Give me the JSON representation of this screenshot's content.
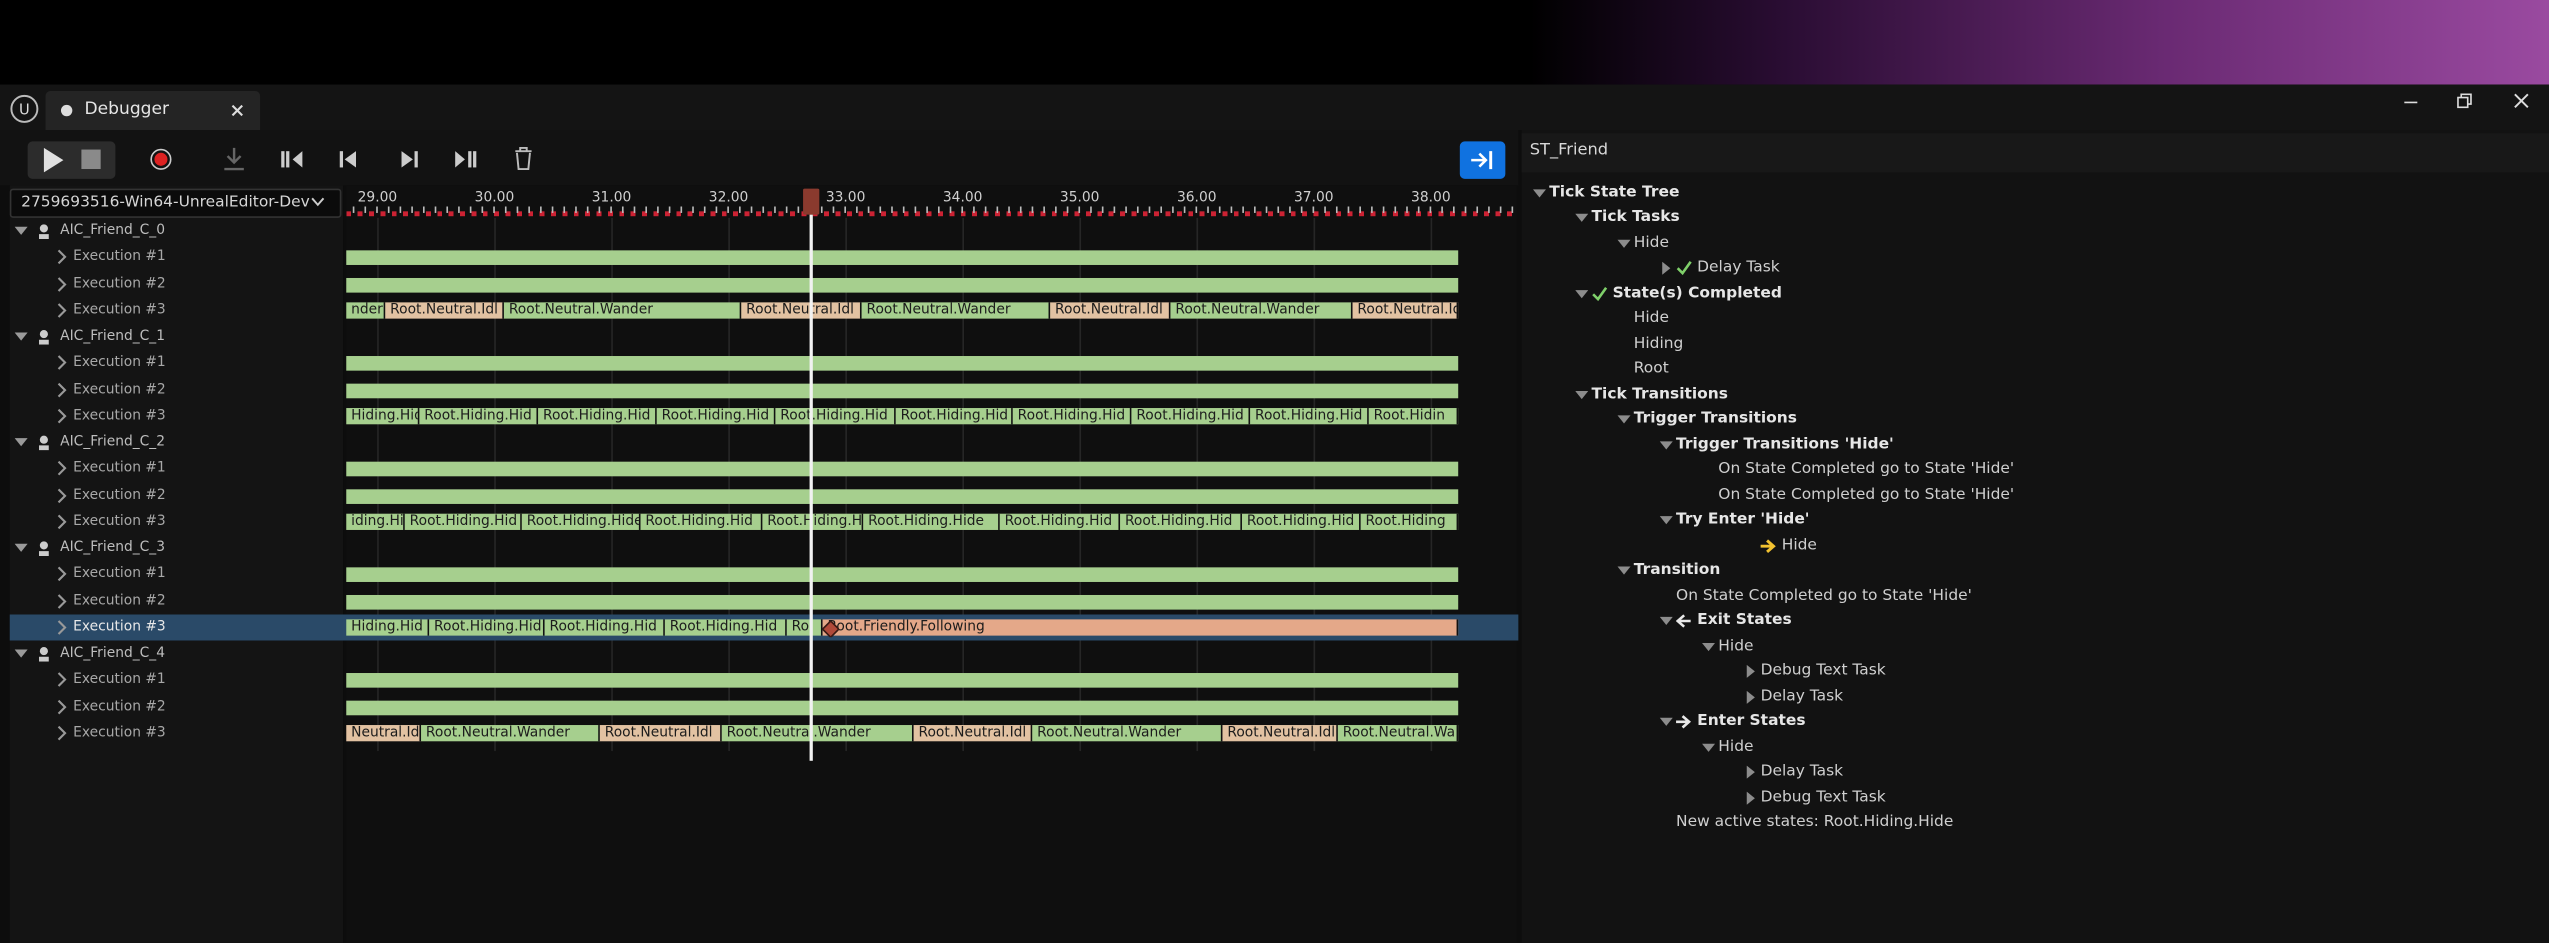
{
  "tab": {
    "title": "Debugger"
  },
  "session": "2759693516-Win64-UnrealEditor-Dev",
  "ruler": [
    "29.00",
    "30.00",
    "31.00",
    "32.00",
    "33.00",
    "34.00",
    "35.00",
    "36.00",
    "37.00",
    "38.00"
  ],
  "tracks": [
    {
      "name": "AIC_Friend_C_0",
      "executions": [
        {
          "name": "Execution #1"
        },
        {
          "name": "Execution #2"
        },
        {
          "name": "Execution #3",
          "segments": [
            "nder",
            "Root.Neutral.Idl",
            "Root.Neutral.Wander",
            "Root.Neutral.Idl",
            "Root.Neutral.Wander",
            "Root.Neutral.Idl",
            "Root.Neutral.Wander",
            "Root.Neutral.Idl"
          ]
        }
      ]
    },
    {
      "name": "AIC_Friend_C_1",
      "executions": [
        {
          "name": "Execution #1"
        },
        {
          "name": "Execution #2"
        },
        {
          "name": "Execution #3",
          "segments": [
            "Hiding.Hid",
            "Root.Hiding.Hid",
            "Root.Hiding.Hid",
            "Root.Hiding.Hid",
            "Root.Hiding.Hid",
            "Root.Hiding.Hid",
            "Root.Hiding.Hid",
            "Root.Hiding.Hid",
            "Root.Hiding.Hid",
            "Root.Hidin"
          ]
        }
      ]
    },
    {
      "name": "AIC_Friend_C_2",
      "executions": [
        {
          "name": "Execution #1"
        },
        {
          "name": "Execution #2"
        },
        {
          "name": "Execution #3",
          "segments": [
            "iding.Hid",
            "Root.Hiding.Hid",
            "Root.Hiding.Hide",
            "Root.Hiding.Hid",
            "Root.Hiding.H",
            "Root.Hiding.Hide",
            "Root.Hiding.Hid",
            "Root.Hiding.Hid",
            "Root.Hiding.Hid",
            "Root.Hiding"
          ]
        }
      ]
    },
    {
      "name": "AIC_Friend_C_3",
      "executions": [
        {
          "name": "Execution #1"
        },
        {
          "name": "Execution #2"
        },
        {
          "name": "Execution #3",
          "segments": [
            "Hiding.Hid",
            "Root.Hiding.Hid",
            "Root.Hiding.Hid",
            "Root.Hiding.Hid",
            "Ro",
            "Root.Friendly.Following"
          ]
        }
      ]
    },
    {
      "name": "AIC_Friend_C_4",
      "executions": [
        {
          "name": "Execution #1"
        },
        {
          "name": "Execution #2"
        },
        {
          "name": "Execution #3",
          "segments": [
            "Neutral.Idl",
            "Root.Neutral.Wander",
            "Root.Neutral.Idl",
            "Root.Neutral.Wander",
            "Root.Neutral.Idl",
            "Root.Neutral.Wander",
            "Root.Neutral.Idl",
            "Root.Neutral.Wa"
          ]
        }
      ]
    }
  ],
  "details": {
    "title": "ST_Friend",
    "lines": [
      "Tick State Tree",
      "Tick Tasks",
      "Hide",
      "Delay Task",
      "State(s) Completed",
      "Hide",
      "Hiding",
      "Root",
      "Tick Transitions",
      "Trigger Transitions",
      "Trigger Transitions 'Hide'",
      "On State Completed go to State 'Hide'",
      "On State Completed go to State 'Hide'",
      "Try Enter 'Hide'",
      "Hide",
      "Transition",
      "On State Completed go to State 'Hide'",
      "Exit States",
      "Hide",
      "Debug Text Task",
      "Delay Task",
      "Enter States",
      "Hide",
      "Delay Task",
      "Debug Text Task",
      "New active states: Root.Hiding.Hide"
    ]
  }
}
